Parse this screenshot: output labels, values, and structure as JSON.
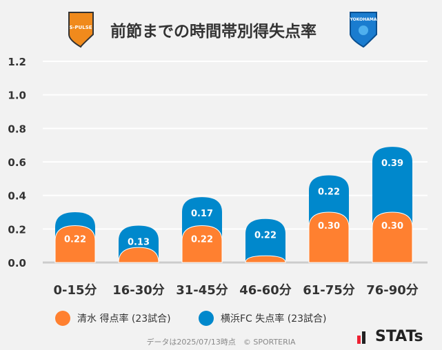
{
  "title": "前節までの時間帯別得失点率",
  "chart_data": {
    "type": "bar",
    "stacked": true,
    "categories": [
      "0-15分",
      "16-30分",
      "31-45分",
      "46-60分",
      "61-75分",
      "76-90分"
    ],
    "series": [
      {
        "name": "清水 得点率 (23試合)",
        "color": "#ff8030",
        "values": [
          0.22,
          0.09,
          0.22,
          0.04,
          0.3,
          0.3
        ],
        "labels": [
          "0.22",
          "",
          "0.22",
          "",
          "0.30",
          "0.30"
        ]
      },
      {
        "name": "横浜FC 失点率 (23試合)",
        "color": "#0088cc",
        "values": [
          0.08,
          0.13,
          0.17,
          0.22,
          0.22,
          0.39
        ],
        "labels": [
          "",
          "0.13",
          "0.17",
          "0.22",
          "0.22",
          "0.39"
        ]
      }
    ],
    "yticks": [
      "0.0",
      "0.2",
      "0.4",
      "0.6",
      "0.8",
      "1.0",
      "1.2"
    ],
    "ylim": [
      0,
      1.2
    ],
    "grid": true,
    "legend": "bottom"
  },
  "footer": "データは2025/07/13時点　© SPORTERIA",
  "logos": {
    "left": "S-PULSE",
    "right": "YOKOHAMA FC"
  },
  "brand": "STATs"
}
